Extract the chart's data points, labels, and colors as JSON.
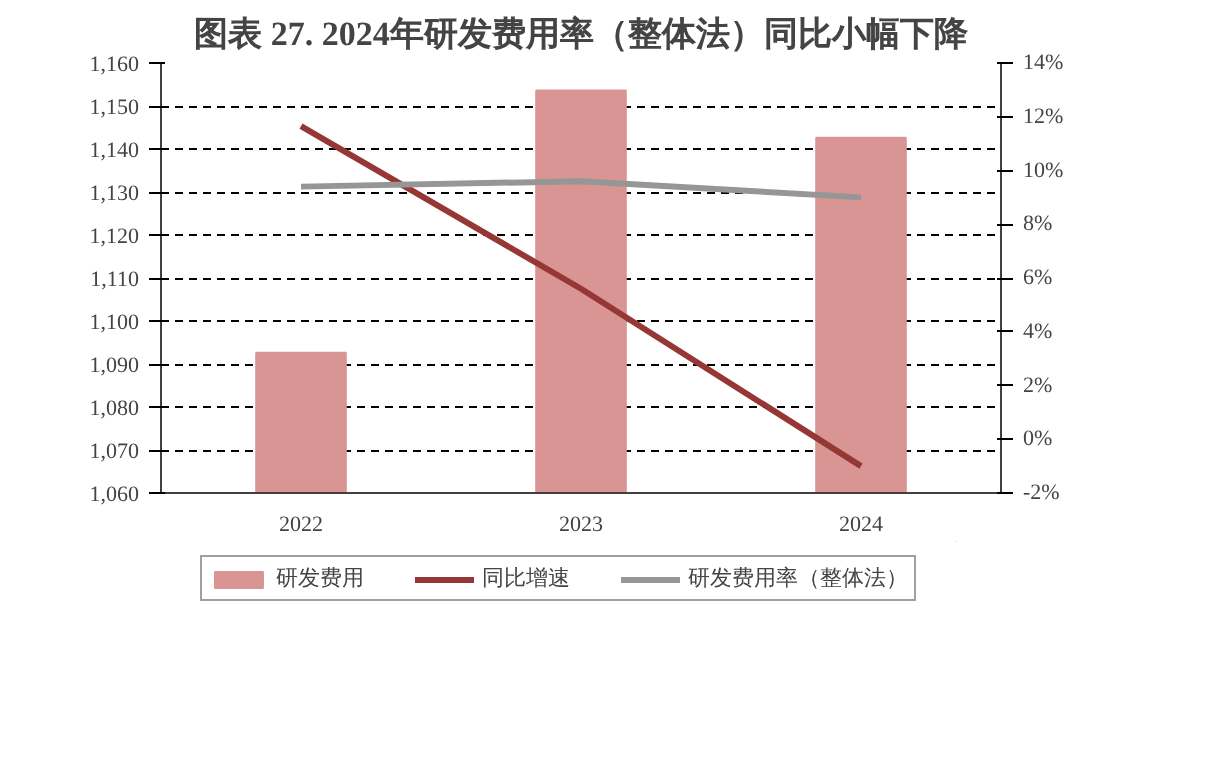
{
  "chart_data": {
    "type": "bar",
    "title": "图表 27. 2024年研发费用率（整体法）同比小幅下降",
    "categories": [
      "2022",
      "2023",
      "2024"
    ],
    "series": [
      {
        "name": "研发费用",
        "type": "bar",
        "color": "#d99594",
        "values": [
          1092.6,
          1153.6,
          1142.6
        ]
      },
      {
        "name": "同比增速",
        "type": "line",
        "axis": "y2",
        "color": "#953735",
        "values": [
          11.65,
          5.6,
          -1.0
        ]
      },
      {
        "name": "研发费用率（整体法）",
        "type": "line",
        "axis": "y2",
        "color": "#969696",
        "values": [
          9.4,
          9.6,
          9.0
        ]
      }
    ],
    "ylim": [
      1060,
      1160
    ],
    "yticks": [
      {
        "value": 1060,
        "label": "1,060"
      },
      {
        "value": 1070,
        "label": "1,070"
      },
      {
        "value": 1080,
        "label": "1,080"
      },
      {
        "value": 1090,
        "label": "1,090"
      },
      {
        "value": 1100,
        "label": "1,100"
      },
      {
        "value": 1110,
        "label": "1,110"
      },
      {
        "value": 1120,
        "label": "1,120"
      },
      {
        "value": 1130,
        "label": "1,130"
      },
      {
        "value": 1140,
        "label": "1,140"
      },
      {
        "value": 1150,
        "label": "1,150"
      },
      {
        "value": 1160,
        "label": "1,160"
      }
    ],
    "y2lim": [
      -2,
      14
    ],
    "y2ticks": [
      {
        "value": -2,
        "label": "-2%"
      },
      {
        "value": 0,
        "label": "0%"
      },
      {
        "value": 2,
        "label": "2%"
      },
      {
        "value": 4,
        "label": "4%"
      },
      {
        "value": 6,
        "label": "6%"
      },
      {
        "value": 8,
        "label": "8%"
      },
      {
        "value": 10,
        "label": "10%"
      },
      {
        "value": 12,
        "label": "12%"
      },
      {
        "value": 14,
        "label": "14%"
      }
    ],
    "grid": "y",
    "legend": "bottom",
    "line_style": "solid"
  }
}
